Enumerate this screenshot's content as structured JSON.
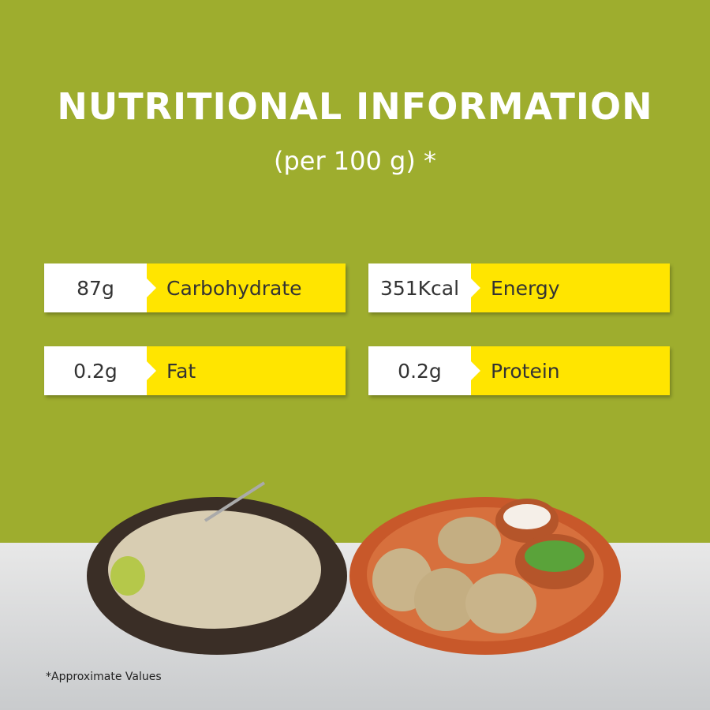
{
  "header": {
    "title": "NUTRITIONAL INFORMATION",
    "subtitle": "(per 100 g) *"
  },
  "nutrients": [
    {
      "amount": "87g",
      "name": "Carbohydrate"
    },
    {
      "amount": "351Kcal",
      "name": "Energy"
    },
    {
      "amount": "0.2g",
      "name": "Fat"
    },
    {
      "amount": "0.2g",
      "name": "Protein"
    }
  ],
  "footnote": "*Approximate Values"
}
